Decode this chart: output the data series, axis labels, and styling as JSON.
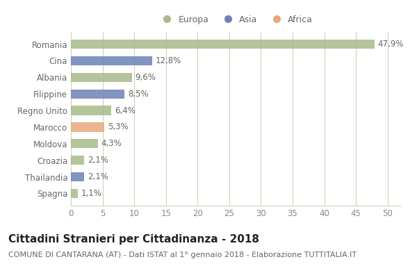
{
  "countries": [
    "Romania",
    "Cina",
    "Albania",
    "Filippine",
    "Regno Unito",
    "Marocco",
    "Moldova",
    "Croazia",
    "Thailandia",
    "Spagna"
  ],
  "values": [
    47.9,
    12.8,
    9.6,
    8.5,
    6.4,
    5.3,
    4.3,
    2.1,
    2.1,
    1.1
  ],
  "labels": [
    "47,9%",
    "12,8%",
    "9,6%",
    "8,5%",
    "6,4%",
    "5,3%",
    "4,3%",
    "2,1%",
    "2,1%",
    "1,1%"
  ],
  "colors": [
    "#a8bb8a",
    "#6b82b8",
    "#a8bb8a",
    "#6b82b8",
    "#a8bb8a",
    "#e8a87c",
    "#a8bb8a",
    "#a8bb8a",
    "#6b82b8",
    "#a8bb8a"
  ],
  "legend_labels": [
    "Europa",
    "Asia",
    "Africa"
  ],
  "legend_colors": [
    "#a8bb8a",
    "#6b82b8",
    "#e8a87c"
  ],
  "xlim": [
    0,
    52
  ],
  "xticks": [
    0,
    5,
    10,
    15,
    20,
    25,
    30,
    35,
    40,
    45,
    50
  ],
  "title": "Cittadini Stranieri per Cittadinanza - 2018",
  "subtitle": "COMUNE DI CANTARANA (AT) - Dati ISTAT al 1° gennaio 2018 - Elaborazione TUTTITALIA.IT",
  "bg_color": "#ffffff",
  "grid_color": "#c8d4b8",
  "bar_height": 0.55,
  "label_fontsize": 8.5,
  "title_fontsize": 11,
  "subtitle_fontsize": 8,
  "tick_fontsize": 8.5,
  "ytick_fontsize": 8.5
}
